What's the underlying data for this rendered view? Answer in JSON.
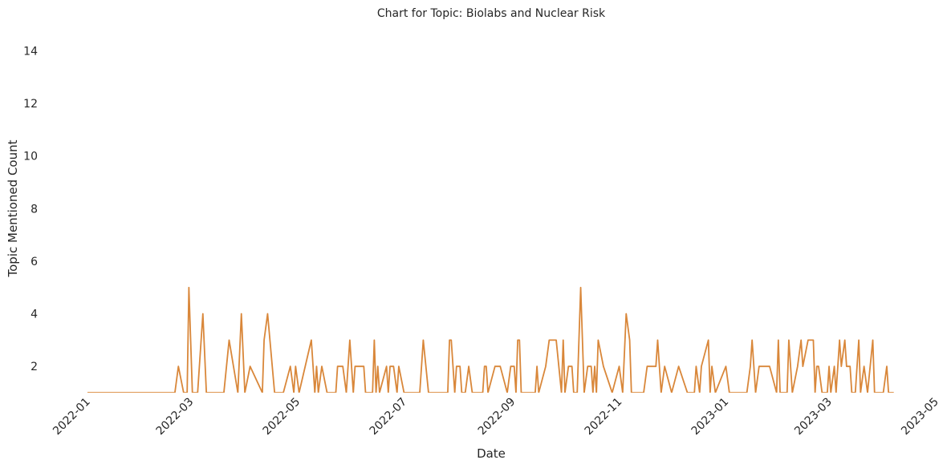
{
  "chart_data": {
    "type": "line",
    "title": "Chart for Topic: Biolabs and Nuclear Risk",
    "x_label": "Date",
    "y_label": "Topic Mentioned Count",
    "x": [
      "2022-01-01",
      "2022-02-20",
      "2022-02-22",
      "2022-02-25",
      "2022-02-27",
      "2022-02-28",
      "2022-03-02",
      "2022-03-05",
      "2022-03-08",
      "2022-03-10",
      "2022-03-20",
      "2022-03-23",
      "2022-03-28",
      "2022-03-30",
      "2022-04-01",
      "2022-04-04",
      "2022-04-11",
      "2022-04-12",
      "2022-04-14",
      "2022-04-18",
      "2022-04-23",
      "2022-04-27",
      "2022-04-29",
      "2022-04-30",
      "2022-05-02",
      "2022-05-09",
      "2022-05-11",
      "2022-05-12",
      "2022-05-13",
      "2022-05-15",
      "2022-05-18",
      "2022-05-23",
      "2022-05-24",
      "2022-05-27",
      "2022-05-29",
      "2022-05-31",
      "2022-06-02",
      "2022-06-03",
      "2022-06-08",
      "2022-06-09",
      "2022-06-13",
      "2022-06-14",
      "2022-06-15",
      "2022-06-16",
      "2022-06-17",
      "2022-06-21",
      "2022-06-22",
      "2022-06-23",
      "2022-06-25",
      "2022-06-27",
      "2022-06-28",
      "2022-07-01",
      "2022-07-10",
      "2022-07-12",
      "2022-07-15",
      "2022-07-26",
      "2022-07-27",
      "2022-07-28",
      "2022-07-30",
      "2022-07-31",
      "2022-08-02",
      "2022-08-03",
      "2022-08-05",
      "2022-08-07",
      "2022-08-09",
      "2022-08-15",
      "2022-08-16",
      "2022-08-17",
      "2022-08-18",
      "2022-08-22",
      "2022-08-25",
      "2022-08-29",
      "2022-08-31",
      "2022-09-02",
      "2022-09-03",
      "2022-09-04",
      "2022-09-05",
      "2022-09-06",
      "2022-09-14",
      "2022-09-15",
      "2022-09-16",
      "2022-09-20",
      "2022-09-22",
      "2022-09-26",
      "2022-09-29",
      "2022-09-30",
      "2022-10-01",
      "2022-10-03",
      "2022-10-05",
      "2022-10-06",
      "2022-10-08",
      "2022-10-10",
      "2022-10-12",
      "2022-10-14",
      "2022-10-16",
      "2022-10-17",
      "2022-10-18",
      "2022-10-19",
      "2022-10-20",
      "2022-10-23",
      "2022-10-28",
      "2022-11-01",
      "2022-11-03",
      "2022-11-05",
      "2022-11-07",
      "2022-11-08",
      "2022-11-15",
      "2022-11-17",
      "2022-11-22",
      "2022-11-23",
      "2022-11-25",
      "2022-11-27",
      "2022-12-01",
      "2022-12-05",
      "2022-12-10",
      "2022-12-14",
      "2022-12-15",
      "2022-12-17",
      "2022-12-18",
      "2022-12-22",
      "2022-12-23",
      "2022-12-24",
      "2022-12-26",
      "2023-01-01",
      "2023-01-03",
      "2023-01-13",
      "2023-01-15",
      "2023-01-16",
      "2023-01-18",
      "2023-01-20",
      "2023-01-26",
      "2023-01-30",
      "2023-01-31",
      "2023-02-01",
      "2023-02-05",
      "2023-02-06",
      "2023-02-08",
      "2023-02-11",
      "2023-02-13",
      "2023-02-14",
      "2023-02-17",
      "2023-02-20",
      "2023-02-21",
      "2023-02-22",
      "2023-02-23",
      "2023-02-25",
      "2023-02-28",
      "2023-03-01",
      "2023-03-02",
      "2023-03-04",
      "2023-03-05",
      "2023-03-07",
      "2023-03-08",
      "2023-03-10",
      "2023-03-11",
      "2023-03-13",
      "2023-03-14",
      "2023-03-16",
      "2023-03-18",
      "2023-03-19",
      "2023-03-21",
      "2023-03-23",
      "2023-03-26",
      "2023-03-27",
      "2023-04-01",
      "2023-04-03",
      "2023-04-04",
      "2023-04-07"
    ],
    "series": [
      {
        "name": "Topic Mentioned Count",
        "color": "#d9873a",
        "values": [
          1,
          1,
          2,
          1,
          1,
          5,
          1,
          1,
          4,
          1,
          1,
          3,
          1,
          4,
          1,
          2,
          1,
          3,
          4,
          1,
          1,
          2,
          1,
          2,
          1,
          3,
          1,
          2,
          1,
          2,
          1,
          1,
          2,
          2,
          1,
          3,
          1,
          2,
          2,
          1,
          1,
          3,
          1,
          2,
          1,
          2,
          1,
          2,
          2,
          1,
          2,
          1,
          1,
          3,
          1,
          1,
          3,
          3,
          1,
          2,
          2,
          1,
          1,
          2,
          1,
          1,
          2,
          2,
          1,
          2,
          2,
          1,
          2,
          2,
          1,
          3,
          3,
          1,
          1,
          2,
          1,
          2,
          3,
          3,
          1,
          3,
          1,
          2,
          2,
          1,
          1,
          5,
          1,
          2,
          2,
          1,
          2,
          1,
          3,
          2,
          1,
          2,
          1,
          4,
          3,
          1,
          1,
          2,
          2,
          3,
          1,
          2,
          1,
          2,
          1,
          1,
          2,
          1,
          2,
          3,
          1,
          2,
          1,
          2,
          1,
          1,
          2,
          3,
          1,
          2,
          2,
          1,
          3,
          1,
          1,
          3,
          1,
          2,
          3,
          2,
          3,
          3,
          1,
          2,
          2,
          1,
          1,
          2,
          1,
          2,
          1,
          3,
          2,
          3,
          2,
          2,
          1,
          1,
          3,
          1,
          2,
          1,
          3,
          1,
          1,
          2,
          1,
          1
        ]
      }
    ],
    "xlim": [
      "2021-12-10",
      "2023-05-01"
    ],
    "xticks": [
      {
        "value": "2022-01-01",
        "label": "2022-01"
      },
      {
        "value": "2022-03-01",
        "label": "2022-03"
      },
      {
        "value": "2022-05-01",
        "label": "2022-05"
      },
      {
        "value": "2022-07-01",
        "label": "2022-07"
      },
      {
        "value": "2022-09-01",
        "label": "2022-09"
      },
      {
        "value": "2022-11-01",
        "label": "2022-11"
      },
      {
        "value": "2023-01-01",
        "label": "2023-01"
      },
      {
        "value": "2023-03-01",
        "label": "2023-03"
      },
      {
        "value": "2023-05-01",
        "label": "2023-05"
      }
    ],
    "ylim": [
      1,
      14.65
    ],
    "yticks": [
      2,
      4,
      6,
      8,
      10,
      12,
      14
    ],
    "grid": false
  }
}
